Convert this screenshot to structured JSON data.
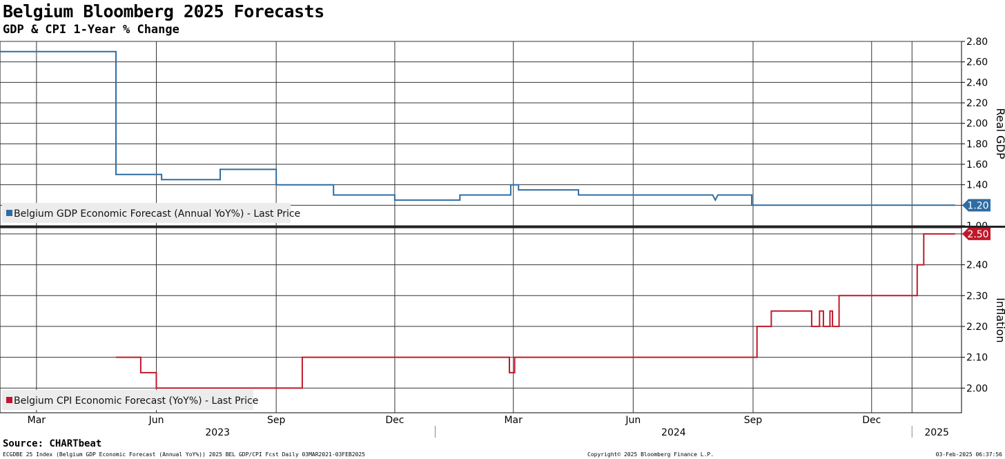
{
  "header": {
    "title": "Belgium Bloomberg 2025 Forecasts",
    "subtitle": "GDP & CPI 1-Year % Change"
  },
  "footer": {
    "source": "Source: CHARTbeat",
    "left_note": "ECGDBE 25 Index (Belgium GDP Economic Forecast (Annual YoY%)) 2025 BEL GDP/CPI Fcst  Daily 03MAR2021-03FEB2025",
    "center_note": "Copyright© 2025 Bloomberg Finance L.P.",
    "right_note": "03-Feb-2025 06:37:56"
  },
  "colors": {
    "gdp": "#2e6ca4",
    "cpi": "#c0182a"
  },
  "chart_data": [
    {
      "type": "line",
      "ylabel": "Real GDP",
      "ylim": [
        1.0,
        2.8
      ],
      "yticks": [
        1.0,
        1.2,
        1.4,
        1.6,
        1.8,
        2.0,
        2.2,
        2.4,
        2.6,
        2.8
      ],
      "tick_labels": [
        "1.00",
        "1.20",
        "1.40",
        "1.60",
        "1.80",
        "2.00",
        "2.20",
        "2.40",
        "2.60",
        "2.80"
      ],
      "legend": "Belgium GDP Economic Forecast (Annual YoY%) - Last Price",
      "last_value_label": "1.20",
      "series": [
        {
          "name": "Belgium GDP Economic Forecast (Annual YoY%) - Last Price",
          "points": [
            [
              "2023-02-01",
              2.7
            ],
            [
              "2023-05-01",
              2.7
            ],
            [
              "2023-05-01",
              1.5
            ],
            [
              "2023-06-05",
              1.5
            ],
            [
              "2023-06-05",
              1.45
            ],
            [
              "2023-07-20",
              1.45
            ],
            [
              "2023-07-20",
              1.55
            ],
            [
              "2023-09-01",
              1.55
            ],
            [
              "2023-09-01",
              1.4
            ],
            [
              "2023-10-15",
              1.4
            ],
            [
              "2023-10-15",
              1.3
            ],
            [
              "2023-12-01",
              1.3
            ],
            [
              "2023-12-01",
              1.25
            ],
            [
              "2024-01-20",
              1.25
            ],
            [
              "2024-01-20",
              1.3
            ],
            [
              "2024-02-28",
              1.3
            ],
            [
              "2024-02-28",
              1.4
            ],
            [
              "2024-03-05",
              1.4
            ],
            [
              "2024-03-05",
              1.35
            ],
            [
              "2024-04-20",
              1.35
            ],
            [
              "2024-04-20",
              1.3
            ],
            [
              "2024-08-01",
              1.3
            ],
            [
              "2024-08-03",
              1.25
            ],
            [
              "2024-08-05",
              1.3
            ],
            [
              "2024-08-31",
              1.3
            ],
            [
              "2024-08-31",
              1.2
            ],
            [
              "2025-02-03",
              1.2
            ]
          ]
        }
      ]
    },
    {
      "type": "line",
      "ylabel": "Inflation",
      "ylim": [
        1.92,
        2.52
      ],
      "yticks": [
        2.0,
        2.1,
        2.2,
        2.3,
        2.4,
        2.5
      ],
      "tick_labels": [
        "2.00",
        "2.10",
        "2.20",
        "2.30",
        "2.40",
        "2.50"
      ],
      "legend": "Belgium CPI Economic Forecast (YoY%) - Last Price",
      "last_value_label": "2.50",
      "series": [
        {
          "name": "Belgium CPI Economic Forecast (YoY%) - Last Price",
          "points": [
            [
              "2023-05-01",
              2.1
            ],
            [
              "2023-05-20",
              2.1
            ],
            [
              "2023-05-20",
              2.05
            ],
            [
              "2023-06-01",
              2.05
            ],
            [
              "2023-06-01",
              2.0
            ],
            [
              "2023-09-21",
              2.0
            ],
            [
              "2023-09-21",
              2.1
            ],
            [
              "2024-02-27",
              2.1
            ],
            [
              "2024-02-27",
              2.05
            ],
            [
              "2024-03-02",
              2.05
            ],
            [
              "2024-03-02",
              2.1
            ],
            [
              "2024-09-04",
              2.1
            ],
            [
              "2024-09-04",
              2.2
            ],
            [
              "2024-09-15",
              2.2
            ],
            [
              "2024-09-15",
              2.25
            ],
            [
              "2024-10-16",
              2.25
            ],
            [
              "2024-10-16",
              2.2
            ],
            [
              "2024-10-22",
              2.2
            ],
            [
              "2024-10-22",
              2.25
            ],
            [
              "2024-10-25",
              2.25
            ],
            [
              "2024-10-25",
              2.2
            ],
            [
              "2024-10-30",
              2.2
            ],
            [
              "2024-10-30",
              2.25
            ],
            [
              "2024-11-01",
              2.25
            ],
            [
              "2024-11-01",
              2.2
            ],
            [
              "2024-11-06",
              2.2
            ],
            [
              "2024-11-06",
              2.3
            ],
            [
              "2025-01-05",
              2.3
            ],
            [
              "2025-01-05",
              2.4
            ],
            [
              "2025-01-10",
              2.4
            ],
            [
              "2025-01-10",
              2.5
            ],
            [
              "2025-02-03",
              2.5
            ]
          ]
        }
      ]
    }
  ],
  "x_axis": {
    "range": [
      "2023-02-01",
      "2025-02-08"
    ],
    "month_ticks": [
      {
        "date": "2023-03-01",
        "label": "Mar"
      },
      {
        "date": "2023-06-01",
        "label": "Jun"
      },
      {
        "date": "2023-09-01",
        "label": "Sep"
      },
      {
        "date": "2023-12-01",
        "label": "Dec"
      },
      {
        "date": "2024-03-01",
        "label": "Mar"
      },
      {
        "date": "2024-06-01",
        "label": "Jun"
      },
      {
        "date": "2024-09-01",
        "label": "Sep"
      },
      {
        "date": "2024-12-01",
        "label": "Dec"
      },
      {
        "date": "2025-01-01",
        "label": ""
      }
    ],
    "year_labels": [
      {
        "label": "2023",
        "start": "2023-02-01",
        "end": "2024-01-01"
      },
      {
        "label": "2024",
        "start": "2024-01-01",
        "end": "2025-01-01"
      },
      {
        "label": "2025",
        "start": "2025-01-01",
        "end": "2025-02-08"
      }
    ]
  }
}
